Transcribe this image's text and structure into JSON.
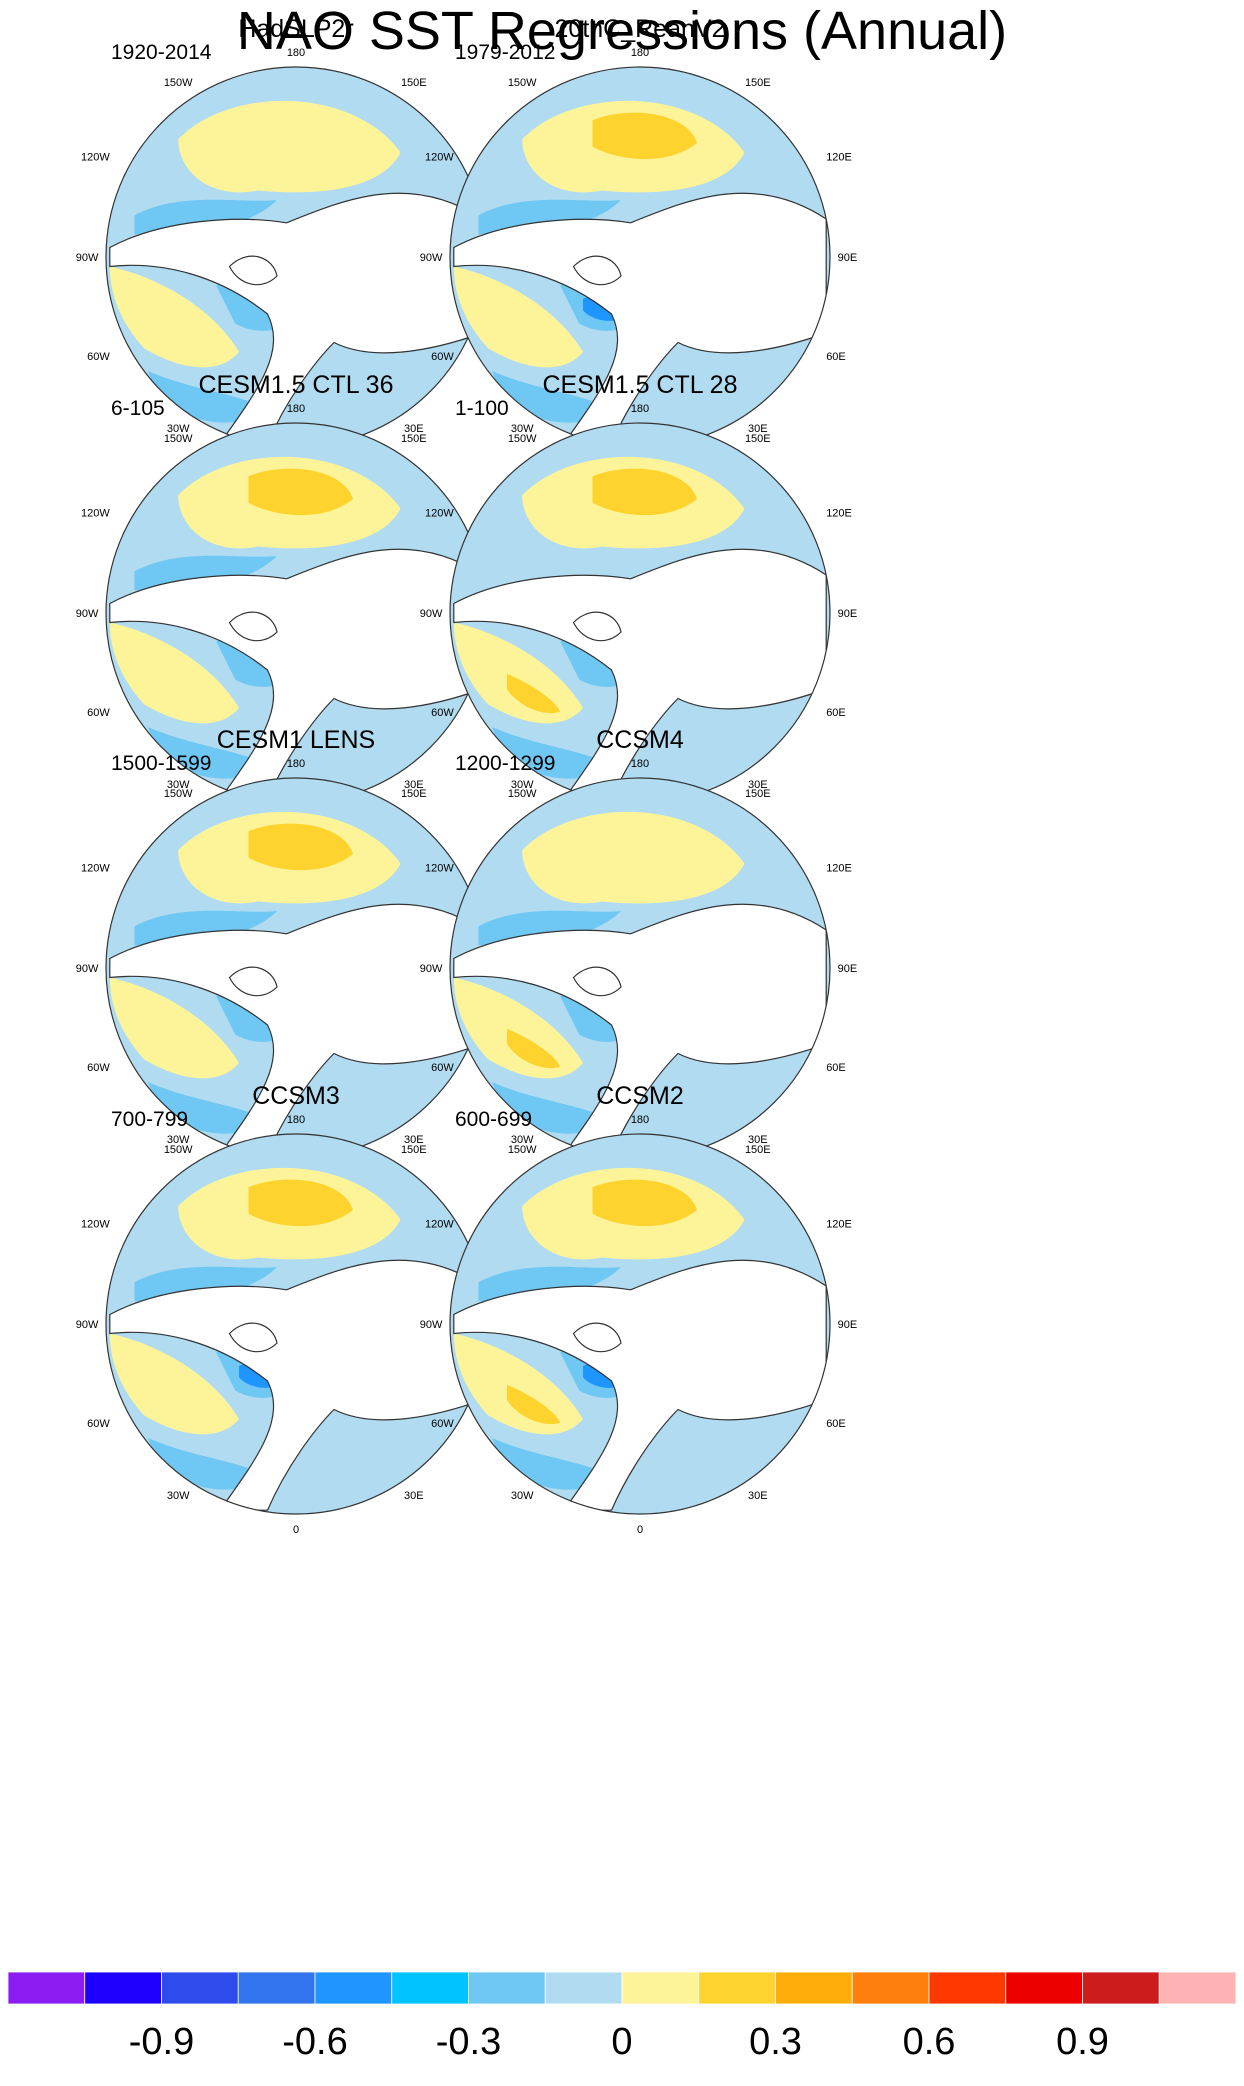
{
  "title": "NAO SST Regressions (Annual)",
  "colorbar": {
    "colors": [
      "#8c1cf2",
      "#1d00ff",
      "#2e4bec",
      "#3274ee",
      "#1e95ff",
      "#00c3ff",
      "#6fc7f3",
      "#b0dbf0",
      "#fdf49a",
      "#ffd32e",
      "#ffad0a",
      "#ff7f0c",
      "#ff3800",
      "#ec0000",
      "#cd1c1c",
      "#ffb3b3"
    ],
    "tick_labels": [
      "-0.9",
      "-0.6",
      "-0.3",
      "0",
      "0.3",
      "0.6",
      "0.9"
    ]
  },
  "longitude_labels": [
    "180",
    "150E",
    "120E",
    "90E",
    "60E",
    "30E",
    "0",
    "30W",
    "60W",
    "90W",
    "120W",
    "150W"
  ],
  "panels": [
    {
      "title": "HadSLP2r",
      "period": "1920-2014",
      "features": [
        "pos-pacific",
        "neg-pacific-north",
        "pos-atlantic-southwest",
        "neg-atlantic-north",
        "neg-atlantic-south"
      ]
    },
    {
      "title": "20thC_ReanV2",
      "period": "1979-2012",
      "features": [
        "pos-pacific",
        "pos-pacific-core",
        "neg-pacific-north",
        "pos-atlantic-southwest",
        "neg-atlantic-north",
        "strong-neg-atlantic",
        "neg-atlantic-south"
      ]
    },
    {
      "title": "CESM1.5 CTL 36",
      "period": "6-105",
      "features": [
        "pos-pacific",
        "pos-pacific-core",
        "neg-pacific-north",
        "pos-atlantic-southwest",
        "neg-atlantic-north",
        "neg-atlantic-south"
      ]
    },
    {
      "title": "CESM1.5 CTL 28",
      "period": "1-100",
      "features": [
        "pos-pacific",
        "pos-pacific-core",
        "pos-atlantic-southwest",
        "pos-atlantic-core",
        "neg-atlantic-north",
        "neg-atlantic-south"
      ]
    },
    {
      "title": "CESM1 LENS",
      "period": "1500-1599",
      "features": [
        "pos-pacific",
        "pos-pacific-core",
        "neg-pacific-north",
        "pos-atlantic-southwest",
        "neg-atlantic-north",
        "neg-atlantic-south"
      ]
    },
    {
      "title": "CCSM4",
      "period": "1200-1299",
      "features": [
        "pos-pacific",
        "neg-pacific-north",
        "pos-atlantic-southwest",
        "pos-atlantic-core",
        "neg-atlantic-north",
        "neg-atlantic-south"
      ]
    },
    {
      "title": "CCSM3",
      "period": "700-799",
      "features": [
        "pos-pacific",
        "pos-pacific-core",
        "neg-pacific-north",
        "pos-atlantic-southwest",
        "neg-atlantic-north",
        "strong-neg-atlantic",
        "neg-atlantic-south"
      ]
    },
    {
      "title": "CCSM2",
      "period": "600-699",
      "features": [
        "pos-pacific",
        "pos-pacific-core",
        "neg-pacific-north",
        "pos-atlantic-southwest",
        "pos-atlantic-core",
        "neg-atlantic-north",
        "strong-neg-atlantic",
        "neg-atlantic-south"
      ]
    }
  ]
}
